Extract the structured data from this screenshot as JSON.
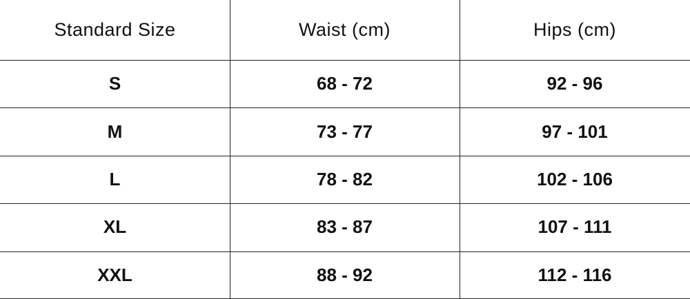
{
  "table": {
    "header": [
      "Standard Size",
      "Waist (cm)",
      "Hips (cm)"
    ],
    "rows": [
      [
        "S",
        "68 - 72",
        "92 - 96"
      ],
      [
        "M",
        "73 - 77",
        "97 - 101"
      ],
      [
        "L",
        "78 - 82",
        "102 - 106"
      ],
      [
        "XL",
        "83 - 87",
        "107 - 111"
      ],
      [
        "XXL",
        "88 - 92",
        "112 - 116"
      ]
    ]
  }
}
